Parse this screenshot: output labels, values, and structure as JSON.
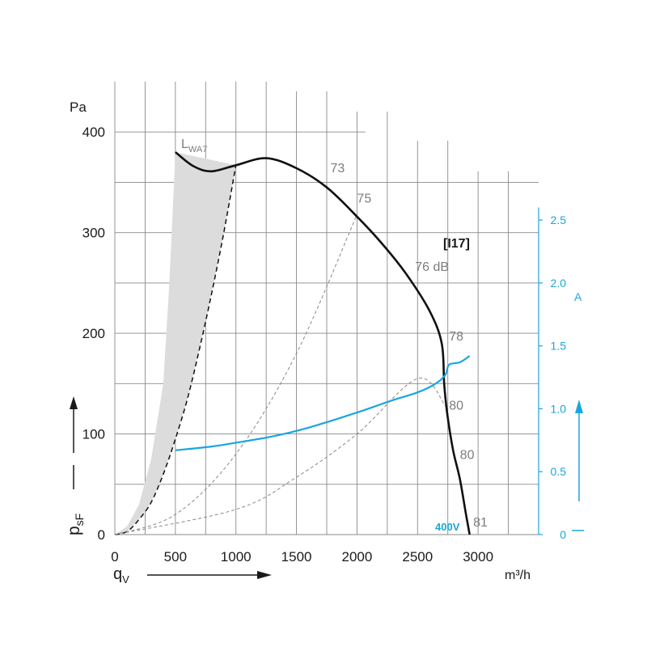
{
  "chart_data": {
    "type": "line",
    "x_unit": "m³/h",
    "y_unit": "Pa",
    "y2_unit": "A",
    "x_symbol": "q",
    "x_symbol_sub": "V",
    "y_symbol": "p",
    "y_symbol_sub": "sF",
    "x_ticks": [
      "0",
      "500",
      "1000",
      "1500",
      "2000",
      "2500",
      "3000"
    ],
    "y_ticks": [
      "0",
      "100",
      "200",
      "300",
      "400"
    ],
    "y2_ticks": [
      "0",
      "0.5",
      "1.0",
      "1.5",
      "2.0",
      "2.5"
    ],
    "xlim": [
      0,
      3500
    ],
    "ylim": [
      0,
      450
    ],
    "y2lim": [
      0,
      3.6
    ],
    "grid": true,
    "curve_label": "[I17]",
    "voltage_label": "400V",
    "lwa_label_main": "L",
    "lwa_label_sub": "WA7",
    "series": [
      {
        "role": "pressure",
        "color": "#111111",
        "points": [
          [
            500,
            380
          ],
          [
            650,
            366
          ],
          [
            800,
            361
          ],
          [
            1000,
            367
          ],
          [
            1250,
            374
          ],
          [
            1500,
            364
          ],
          [
            1750,
            345
          ],
          [
            2000,
            316
          ],
          [
            2200,
            290
          ],
          [
            2400,
            260
          ],
          [
            2600,
            222
          ],
          [
            2700,
            190
          ],
          [
            2720,
            150
          ],
          [
            2740,
            125
          ],
          [
            2770,
            100
          ],
          [
            2800,
            80
          ],
          [
            2850,
            55
          ],
          [
            2900,
            20
          ],
          [
            2930,
            0
          ]
        ]
      },
      {
        "role": "current",
        "color": "#1aa6dc",
        "points": [
          [
            500,
            0.67
          ],
          [
            800,
            0.7
          ],
          [
            1000,
            0.73
          ],
          [
            1300,
            0.78
          ],
          [
            1600,
            0.85
          ],
          [
            2000,
            0.97
          ],
          [
            2300,
            1.07
          ],
          [
            2500,
            1.13
          ],
          [
            2650,
            1.2
          ],
          [
            2730,
            1.27
          ],
          [
            2760,
            1.35
          ],
          [
            2850,
            1.37
          ],
          [
            2930,
            1.42
          ]
        ]
      }
    ],
    "lwa_region": {
      "color": "#dcdcdc",
      "left_boundary": [
        [
          0,
          0
        ],
        [
          100,
          8
        ],
        [
          200,
          30
        ],
        [
          300,
          75
        ],
        [
          400,
          150
        ],
        [
          450,
          250
        ],
        [
          500,
          380
        ]
      ],
      "right_boundary": [
        [
          0,
          0
        ],
        [
          100,
          3
        ],
        [
          200,
          15
        ],
        [
          300,
          32
        ],
        [
          400,
          60
        ],
        [
          500,
          95
        ],
        [
          600,
          135
        ],
        [
          700,
          185
        ],
        [
          800,
          240
        ],
        [
          900,
          300
        ],
        [
          1000,
          367
        ]
      ]
    },
    "system_curves": [
      {
        "points": [
          [
            0,
            0
          ],
          [
            500,
            20
          ],
          [
            1000,
            80
          ],
          [
            1500,
            180
          ],
          [
            2000,
            318
          ]
        ]
      },
      {
        "points": [
          [
            0,
            0
          ],
          [
            1000,
            25
          ],
          [
            1500,
            57
          ],
          [
            2000,
            100
          ],
          [
            2500,
            155
          ],
          [
            2730,
            128
          ]
        ]
      }
    ],
    "sound_levels": [
      {
        "label": "73",
        "x": 1780,
        "y": 360
      },
      {
        "label": "75",
        "x": 2000,
        "y": 330
      },
      {
        "label": "76 dB",
        "x": 2480,
        "y": 262
      },
      {
        "label": "78",
        "x": 2760,
        "y": 193
      },
      {
        "label": "80",
        "x": 2760,
        "y": 124
      },
      {
        "label": "80",
        "x": 2850,
        "y": 75
      },
      {
        "label": "81",
        "x": 2960,
        "y": 8
      }
    ]
  }
}
